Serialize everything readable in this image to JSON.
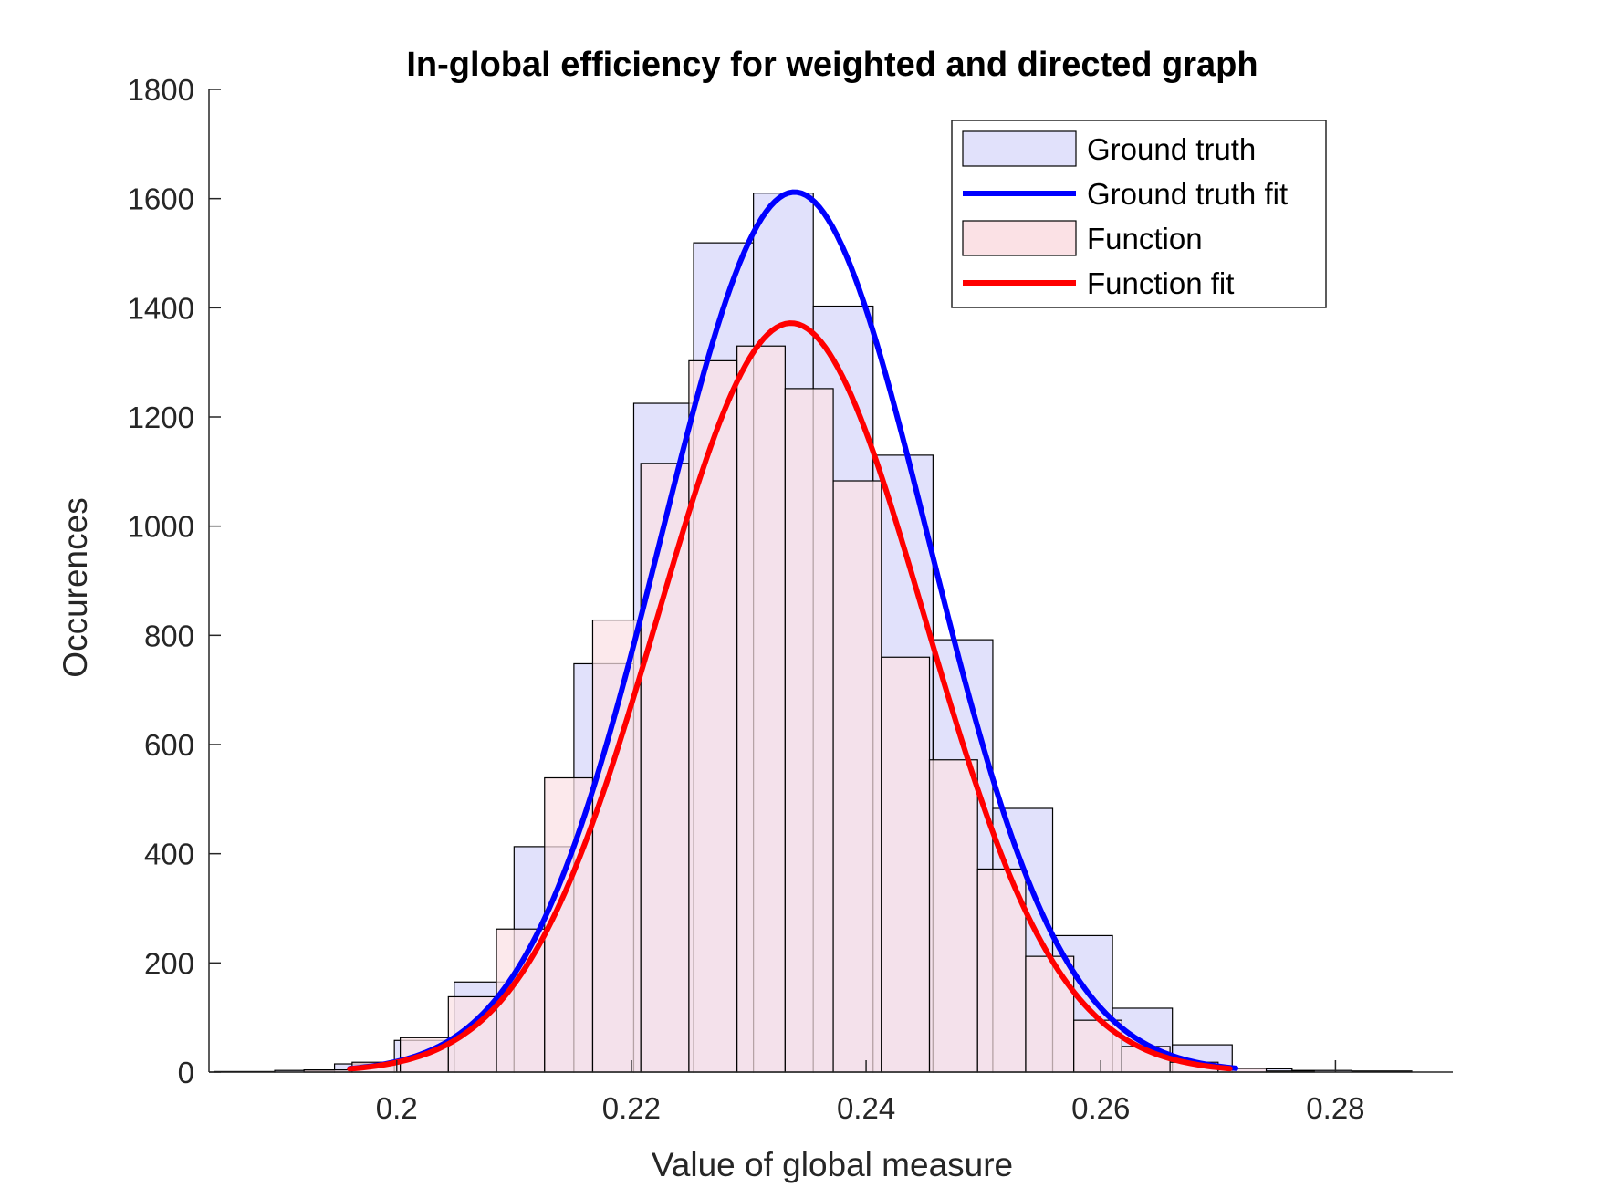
{
  "chart_data": {
    "type": "bar",
    "title": "In-global efficiency for weighted and directed graph",
    "xlabel": "Value of global measure",
    "ylabel": "Occurences",
    "xlim": [
      0.184,
      0.29
    ],
    "ylim": [
      0,
      1800
    ],
    "xticks": [
      0.2,
      0.22,
      0.24,
      0.26,
      0.28
    ],
    "xtick_labels": [
      "0.2",
      "0.22",
      "0.24",
      "0.26",
      "0.28"
    ],
    "yticks": [
      0,
      200,
      400,
      600,
      800,
      1000,
      1200,
      1400,
      1600,
      1800
    ],
    "ytick_labels": [
      "0",
      "200",
      "400",
      "600",
      "800",
      "1000",
      "1200",
      "1400",
      "1600",
      "1800"
    ],
    "grid": false,
    "legend_position": "top-right",
    "histograms": [
      {
        "name": "Ground truth",
        "fill": "#e1e1fb",
        "edges": [
          0.1845,
          0.1896,
          0.1947,
          0.1998,
          0.2049,
          0.21,
          0.2151,
          0.2202,
          0.2253,
          0.2304,
          0.2355,
          0.2406,
          0.2457,
          0.2508,
          0.2559,
          0.261,
          0.2661,
          0.2712,
          0.2763,
          0.2814,
          0.2865
        ],
        "counts": [
          1,
          3,
          15,
          58,
          165,
          413,
          748,
          1225,
          1519,
          1610,
          1403,
          1130,
          792,
          483,
          250,
          117,
          50,
          6,
          3,
          2
        ]
      },
      {
        "name": "Function",
        "fill": "#fbe1e5",
        "edges": [
          0.1921,
          0.1962,
          0.2003,
          0.2044,
          0.2085,
          0.2126,
          0.2167,
          0.2208,
          0.2249,
          0.229,
          0.2331,
          0.2372,
          0.2413,
          0.2454,
          0.2495,
          0.2536,
          0.2577,
          0.2618,
          0.2659,
          0.27,
          0.2741,
          0.2782
        ],
        "counts": [
          4,
          18,
          63,
          138,
          262,
          539,
          828,
          1115,
          1303,
          1330,
          1252,
          1083,
          760,
          572,
          372,
          212,
          95,
          47,
          18,
          7,
          2
        ]
      }
    ],
    "series": [
      {
        "name": "Ground truth fit",
        "color": "#0000ff",
        "type": "normal-fit",
        "mean": 0.2339,
        "std": 0.0114,
        "peak": 1612,
        "x_range": [
          0.196,
          0.2715
        ]
      },
      {
        "name": "Function fit",
        "color": "#ff0000",
        "type": "normal-fit",
        "mean": 0.2336,
        "std": 0.0114,
        "peak": 1372,
        "x_range": [
          0.196,
          0.271
        ]
      }
    ],
    "legend": [
      {
        "label": "Ground truth",
        "kind": "patch",
        "color": "#e1e1fb"
      },
      {
        "label": "Ground truth fit",
        "kind": "line",
        "color": "#0000ff"
      },
      {
        "label": "Function",
        "kind": "patch",
        "color": "#fbe1e5"
      },
      {
        "label": "Function fit",
        "kind": "line",
        "color": "#ff0000"
      }
    ]
  }
}
